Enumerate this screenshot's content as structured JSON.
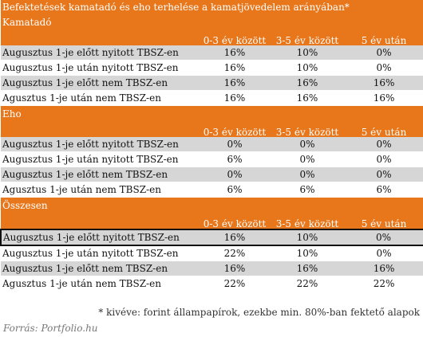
{
  "title": "Befektetések kamatadó és eho terhelése a kamatjövedelem arányában*",
  "columns": [
    "0-3 év között",
    "3-5 év között",
    "5 év után"
  ],
  "sections": [
    {
      "name": "Kamatadó",
      "rows": [
        {
          "label": "Augusztus 1-je előtt nyitott TBSZ-en",
          "values": [
            "16%",
            "10%",
            "0%"
          ]
        },
        {
          "label": "Augusztus 1-je után nyitott TBSZ-en",
          "values": [
            "16%",
            "10%",
            "0%"
          ]
        },
        {
          "label": "Augusztus 1-je előtt nem TBSZ-en",
          "values": [
            "16%",
            "16%",
            "16%"
          ]
        },
        {
          "label": "Agusztus 1-je után nem TBSZ-en",
          "values": [
            "16%",
            "16%",
            "16%"
          ]
        }
      ]
    },
    {
      "name": "Eho",
      "rows": [
        {
          "label": "Augusztus 1-je előtt nyitott TBSZ-en",
          "values": [
            "0%",
            "0%",
            "0%"
          ]
        },
        {
          "label": "Augusztus 1-je után nyitott TBSZ-en",
          "values": [
            "6%",
            "0%",
            "0%"
          ]
        },
        {
          "label": "Augusztus 1-je előtt nem TBSZ-en",
          "values": [
            "0%",
            "0%",
            "0%"
          ]
        },
        {
          "label": "Agusztus 1-je után nem TBSZ-en",
          "values": [
            "6%",
            "6%",
            "6%"
          ]
        }
      ]
    },
    {
      "name": "Összesen",
      "rows": [
        {
          "label": "Augusztus 1-je előtt nyitott TBSZ-en",
          "values": [
            "16%",
            "10%",
            "0%"
          ]
        },
        {
          "label": "Augusztus 1-je után nyitott TBSZ-en",
          "values": [
            "22%",
            "10%",
            "0%"
          ]
        },
        {
          "label": "Augusztus 1-je előtt nem TBSZ-en",
          "values": [
            "16%",
            "16%",
            "16%"
          ]
        },
        {
          "label": "Agusztus 1-je után nem TBSZ-en",
          "values": [
            "22%",
            "22%",
            "22%"
          ]
        }
      ]
    }
  ],
  "footnote": "* kivéve: forint állampapírok, ezekbe min. 80%-ban fektető alapok",
  "source": "Forrás: Portfolio.hu",
  "colors": {
    "header_orange": "#e8761a",
    "row_grey": "#d6d6d6",
    "row_white": "#ffffff",
    "highlight_border": "#111111"
  }
}
